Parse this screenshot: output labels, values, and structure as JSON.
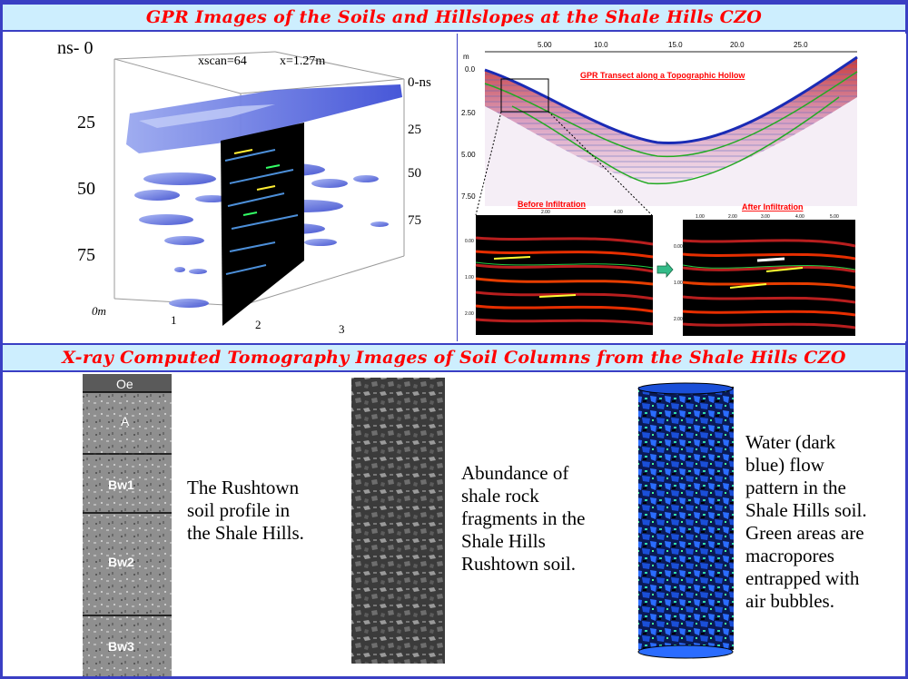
{
  "banners": {
    "top": "GPR Images of the Soils and Hillslopes at the Shale Hills CZO",
    "bottom": "X-ray Computed Tomography Images of Soil Columns from the Shale Hills CZO"
  },
  "gpr_3d": {
    "title_xscan": "xscan=64",
    "title_x": "x=1.27m",
    "left_axis_label": "ns- 0",
    "left_ticks": [
      "25",
      "50",
      "75"
    ],
    "right_axis_label": "0-ns",
    "right_ticks": [
      "25",
      "50",
      "75"
    ],
    "bottom_origin": "0m",
    "bottom_ticks": [
      "1",
      "2",
      "3"
    ]
  },
  "gpr_transect": {
    "title": "GPR Transect along a Topographic Hollow",
    "top_ticks": [
      "5.00",
      "10.0",
      "15.0",
      "20.0",
      "25.0"
    ],
    "left_axis_unit": "m",
    "left_ticks": [
      "0.0",
      "2.50",
      "5.00",
      "7.50"
    ],
    "before_label": "Before Infiltration",
    "after_label": "After Infiltration",
    "inset_left_ticks": [
      "0.00",
      "1.00",
      "2.00"
    ],
    "before_top_ticks": [
      "2.00",
      "4.00"
    ],
    "after_top_ticks": [
      "1.00",
      "2.00",
      "3.00",
      "4.00",
      "5.00"
    ]
  },
  "ct": {
    "horizons": [
      "Oe",
      "A",
      "Bw1",
      "Bw2",
      "Bw3"
    ],
    "caption_1": [
      "The Rushtown",
      "soil profile in",
      "the Shale Hills."
    ],
    "caption_2": [
      "Abundance of",
      "shale rock",
      "fragments in the",
      "Shale Hills",
      "Rushtown soil."
    ],
    "caption_3": [
      "Water (dark",
      "blue) flow",
      "pattern in the",
      "Shale Hills soil.",
      "Green areas are",
      "macropores",
      "entrapped with",
      "air bubbles."
    ]
  },
  "colors": {
    "banner_bg": "#cdeefe",
    "banner_text": "#ff0000",
    "frame": "#3a3fc4"
  }
}
